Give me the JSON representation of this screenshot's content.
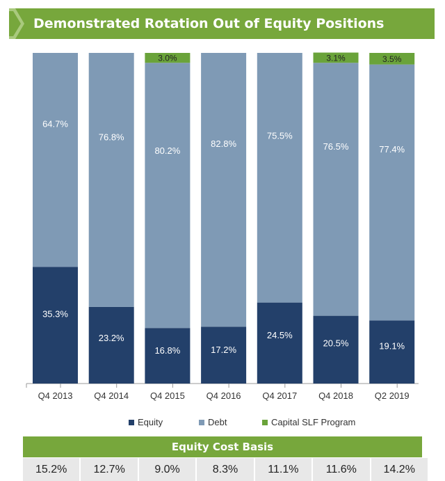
{
  "header": {
    "title": "Demonstrated Rotation Out of Equity Positions"
  },
  "colors": {
    "equity": "#23406a",
    "debt": "#7f9ab5",
    "capital_slf": "#6aa33a",
    "header": "#77a73c"
  },
  "chart_data": {
    "type": "bar",
    "stacked": true,
    "normalized": true,
    "categories": [
      "Q4 2013",
      "Q4 2014",
      "Q4 2015",
      "Q4 2016",
      "Q4 2017",
      "Q4 2018",
      "Q2 2019"
    ],
    "series": [
      {
        "name": "Equity",
        "values": [
          35.3,
          23.2,
          16.8,
          17.2,
          24.5,
          20.5,
          19.1
        ],
        "labels": [
          "35.3%",
          "23.2%",
          "16.8%",
          "17.2%",
          "24.5%",
          "20.5%",
          "19.1%"
        ]
      },
      {
        "name": "Debt",
        "values": [
          64.7,
          76.8,
          80.2,
          82.8,
          75.5,
          76.5,
          77.4
        ],
        "labels": [
          "64.7%",
          "76.8%",
          "80.2%",
          "82.8%",
          "75.5%",
          "76.5%",
          "77.4%"
        ]
      },
      {
        "name": "Capital SLF Program",
        "values": [
          0,
          0,
          3.0,
          0,
          0,
          3.1,
          3.5
        ],
        "labels": [
          "",
          "",
          "3.0%",
          "",
          "",
          "3.1%",
          "3.5%"
        ]
      }
    ],
    "ylim": [
      0,
      100
    ],
    "legend_position": "bottom"
  },
  "legend": {
    "equity": "Equity",
    "debt": "Debt",
    "capital_slf": "Capital SLF Program"
  },
  "cost_basis": {
    "title": "Equity Cost Basis",
    "values": [
      "15.2%",
      "12.7%",
      "9.0%",
      "8.3%",
      "11.1%",
      "11.6%",
      "14.2%"
    ]
  }
}
